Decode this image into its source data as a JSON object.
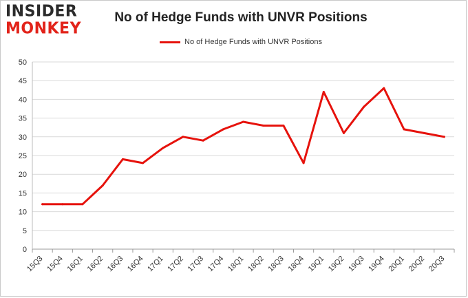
{
  "header": {
    "logo_top": "INSIDER",
    "logo_bottom": "MONKEY",
    "logo_icon": "insider-monkey-logo"
  },
  "chart_data": {
    "type": "line",
    "title": "No of Hedge Funds with UNVR Positions",
    "xlabel": "",
    "ylabel": "",
    "ylim": [
      0,
      50
    ],
    "yticks": [
      0,
      5,
      10,
      15,
      20,
      25,
      30,
      35,
      40,
      45,
      50
    ],
    "grid": true,
    "legend": "top-center",
    "categories": [
      "15Q3",
      "15Q4",
      "16Q1",
      "16Q2",
      "16Q3",
      "16Q4",
      "17Q1",
      "17Q2",
      "17Q3",
      "17Q4",
      "18Q1",
      "18Q2",
      "18Q3",
      "18Q4",
      "19Q1",
      "19Q2",
      "19Q3",
      "19Q4",
      "20Q1",
      "20Q2",
      "20Q3"
    ],
    "series": [
      {
        "name": "No of Hedge Funds with UNVR Positions",
        "color": "#e6120c",
        "values": [
          12,
          12,
          12,
          17,
          24,
          23,
          27,
          30,
          29,
          32,
          34,
          33,
          33,
          23,
          42,
          31,
          38,
          43,
          32,
          31,
          30
        ]
      }
    ]
  }
}
